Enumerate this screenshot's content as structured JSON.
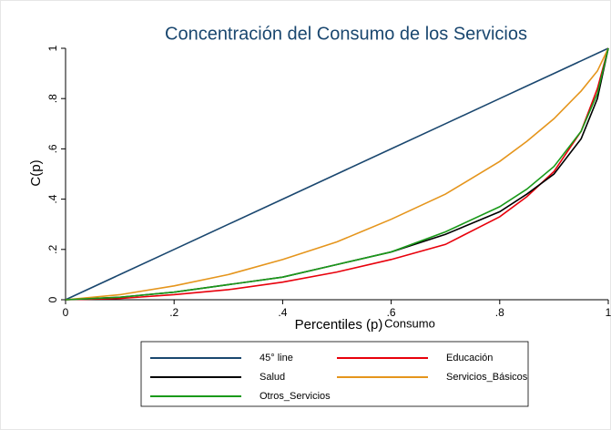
{
  "chart_data": {
    "type": "line",
    "title": "Concentración del Consumo de los Servicios",
    "x_label": "Percentiles (p)",
    "y_label": "C(p)",
    "note": "Consumo",
    "x": [
      0,
      0.1,
      0.2,
      0.3,
      0.4,
      0.5,
      0.6,
      0.7,
      0.8,
      0.85,
      0.9,
      0.95,
      0.98,
      1
    ],
    "series": [
      {
        "name": "45° line",
        "color": "#1a476f",
        "values": [
          0,
          0.1,
          0.2,
          0.3,
          0.4,
          0.5,
          0.6,
          0.7,
          0.8,
          0.85,
          0.9,
          0.95,
          0.98,
          1
        ]
      },
      {
        "name": "Educación",
        "color": "#e8000b",
        "values": [
          0,
          0.005,
          0.02,
          0.04,
          0.07,
          0.11,
          0.16,
          0.22,
          0.33,
          0.41,
          0.51,
          0.67,
          0.84,
          1
        ]
      },
      {
        "name": "Salud",
        "color": "#000000",
        "values": [
          0,
          0.01,
          0.03,
          0.06,
          0.09,
          0.14,
          0.19,
          0.26,
          0.35,
          0.42,
          0.5,
          0.64,
          0.8,
          1
        ]
      },
      {
        "name": "Servicios_Básicos",
        "color": "#e5951c",
        "values": [
          0,
          0.02,
          0.055,
          0.1,
          0.16,
          0.23,
          0.32,
          0.42,
          0.55,
          0.63,
          0.72,
          0.83,
          0.91,
          1
        ]
      },
      {
        "name": "Otros_Servicios",
        "color": "#1a9a1a",
        "values": [
          0,
          0.01,
          0.03,
          0.06,
          0.09,
          0.14,
          0.19,
          0.27,
          0.37,
          0.44,
          0.53,
          0.67,
          0.82,
          1
        ]
      }
    ],
    "xlim": [
      0,
      1
    ],
    "ylim": [
      0,
      1
    ],
    "xticks": [
      0,
      {
        "value": 0.2,
        "label": ".2"
      },
      {
        "value": 0.4,
        "label": ".4"
      },
      {
        "value": 0.6,
        "label": ".6"
      },
      {
        "value": 0.8,
        "label": ".8"
      },
      1
    ],
    "yticks": [
      0,
      {
        "value": 0.2,
        "label": ".2"
      },
      {
        "value": 0.4,
        "label": ".4"
      },
      {
        "value": 0.6,
        "label": ".6"
      },
      {
        "value": 0.8,
        "label": ".8"
      },
      1
    ],
    "legend": "bottom"
  }
}
